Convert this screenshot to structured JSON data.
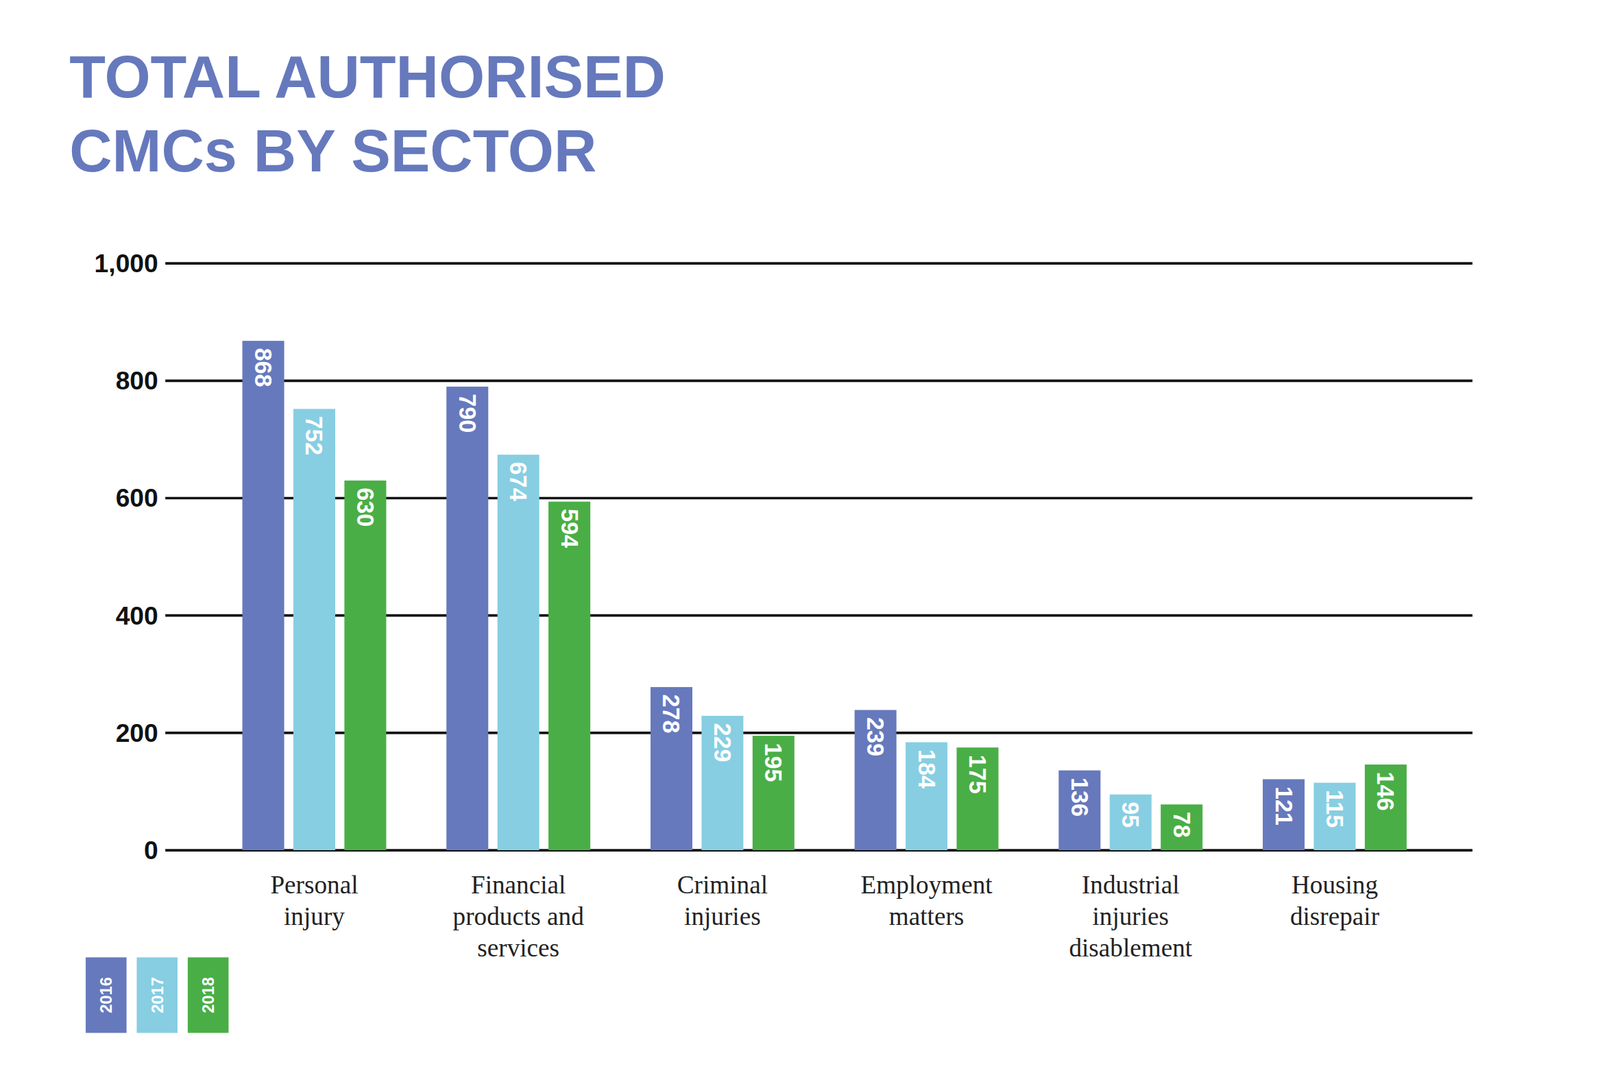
{
  "chart_data": {
    "type": "bar",
    "title": "TOTAL AUTHORISED CMCs BY SECTOR",
    "categories": [
      "Personal injury",
      "Financial products and services",
      "Criminal injuries",
      "Employment matters",
      "Industrial injuries disablement",
      "Housing disrepair"
    ],
    "series": [
      {
        "name": "2016",
        "color": "#6679bd",
        "values": [
          868,
          790,
          278,
          239,
          136,
          121
        ]
      },
      {
        "name": "2017",
        "color": "#87cee2",
        "values": [
          752,
          674,
          229,
          184,
          95,
          115
        ]
      },
      {
        "name": "2018",
        "color": "#4aae46",
        "values": [
          630,
          594,
          195,
          175,
          78,
          146
        ]
      }
    ],
    "ylim": [
      0,
      1000
    ],
    "yticks": [
      0,
      200,
      400,
      600,
      800,
      {
        "value": 1000,
        "label": "1,000"
      }
    ],
    "grid": true,
    "legend": "bottom-left",
    "data_labels": true
  }
}
